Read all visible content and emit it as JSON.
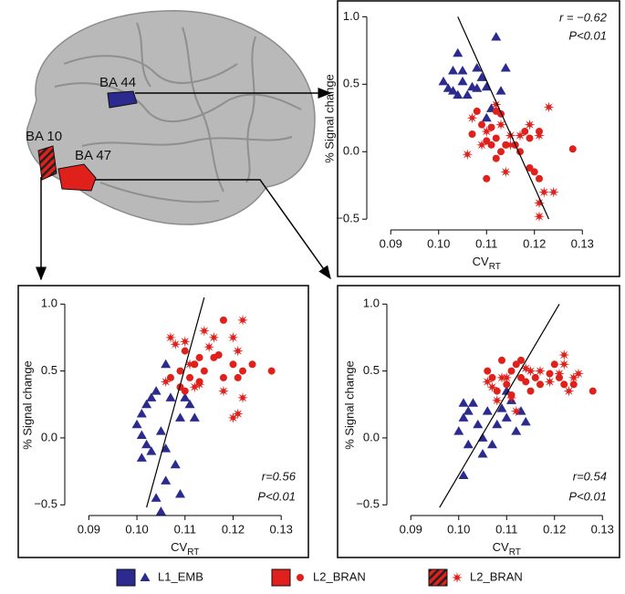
{
  "brain": {
    "labels": [
      "BA 44",
      "BA 10",
      "BA 47"
    ]
  },
  "chart_data": [
    {
      "type": "scatter",
      "xlabel": "CV",
      "xlabel_sub": "RT",
      "ylabel": "% Signal change",
      "annotations": [
        "r = −0.62",
        "P<0.01"
      ],
      "annotation_corner": "top-right",
      "xlim": [
        0.085,
        0.133
      ],
      "ylim": [
        -0.58,
        1.07
      ],
      "xticks": [
        0.09,
        {
          "value": 0.1,
          "label": "0.10"
        },
        0.11,
        0.12,
        0.13
      ],
      "yticks": [
        {
          "value": -0.5,
          "label": "−0.5"
        },
        {
          "value": 0,
          "label": "0.0"
        },
        0.5,
        {
          "value": 1,
          "label": "1.0"
        }
      ],
      "fit": {
        "x": [
          0.104,
          0.123
        ],
        "y": [
          1.0,
          -0.5
        ]
      },
      "series": [
        {
          "name": "L1_EMB",
          "color": "#2b2a8f",
          "marker": "triangle",
          "x": [
            0.101,
            0.102,
            0.104,
            0.103,
            0.105,
            0.105,
            0.104,
            0.106,
            0.107,
            0.108,
            0.109,
            0.11,
            0.108,
            0.111,
            0.112,
            0.11,
            0.113,
            0.114,
            0.103
          ],
          "y": [
            0.52,
            0.47,
            0.73,
            0.6,
            0.6,
            0.52,
            0.42,
            0.42,
            0.48,
            0.62,
            0.55,
            0.48,
            0.47,
            0.32,
            0.85,
            0.25,
            0.45,
            0.62,
            0.45
          ]
        },
        {
          "name": "L2_BRAN",
          "color": "#e0201b",
          "marker": "circle",
          "x": [
            0.108,
            0.109,
            0.111,
            0.112,
            0.113,
            0.11,
            0.111,
            0.112,
            0.114,
            0.113,
            0.116,
            0.118,
            0.117,
            0.119,
            0.121,
            0.119,
            0.12,
            0.121,
            0.11,
            0.128,
            0.107,
            0.112
          ],
          "y": [
            0.3,
            0.2,
            0.18,
            0.3,
            0.28,
            0.08,
            0.05,
            0.1,
            0.05,
            0.0,
            0.05,
            0.15,
            0.0,
            0.1,
            0.15,
            -0.12,
            -0.15,
            -0.2,
            -0.2,
            0.02,
            0.13,
            -0.05
          ]
        },
        {
          "name": "L2_BRAN",
          "color": "#e0201b",
          "marker": "star",
          "x": [
            0.107,
            0.109,
            0.11,
            0.113,
            0.115,
            0.117,
            0.119,
            0.121,
            0.123,
            0.122,
            0.121,
            0.121,
            0.124,
            0.114,
            0.106,
            0.112,
            0.115
          ],
          "y": [
            0.25,
            0.05,
            0.15,
            0.2,
            0.05,
            0.12,
            0.2,
            0.12,
            0.33,
            -0.3,
            -0.38,
            -0.48,
            -0.3,
            -0.15,
            -0.02,
            0.35,
            0.12
          ]
        }
      ]
    },
    {
      "type": "scatter",
      "xlabel": "CV",
      "xlabel_sub": "RT",
      "ylabel": "% Signal change",
      "annotations": [
        "r=0.56",
        "P<0.01"
      ],
      "annotation_corner": "bottom-right",
      "xlim": [
        0.085,
        0.133
      ],
      "ylim": [
        -0.58,
        1.07
      ],
      "xticks": [
        0.09,
        {
          "value": 0.1,
          "label": "0.10"
        },
        0.11,
        0.12,
        0.13
      ],
      "yticks": [
        {
          "value": -0.5,
          "label": "−0.5"
        },
        {
          "value": 0,
          "label": "0.0"
        },
        0.5,
        {
          "value": 1,
          "label": "1.0"
        }
      ],
      "fit": {
        "x": [
          0.102,
          0.114
        ],
        "y": [
          -0.52,
          1.05
        ]
      },
      "series": [
        {
          "name": "L1_EMB",
          "color": "#2b2a8f",
          "marker": "triangle",
          "x": [
            0.101,
            0.1,
            0.101,
            0.102,
            0.103,
            0.101,
            0.102,
            0.104,
            0.105,
            0.106,
            0.108,
            0.107,
            0.109,
            0.11,
            0.111,
            0.112,
            0.106,
            0.109,
            0.105,
            0.104,
            0.106,
            0.103
          ],
          "y": [
            0.18,
            0.1,
            0.02,
            -0.05,
            -0.1,
            -0.15,
            0.25,
            0.35,
            0.05,
            -0.08,
            -0.2,
            0.3,
            0.15,
            0.3,
            0.25,
            0.15,
            -0.32,
            -0.42,
            -0.55,
            -0.45,
            0.55,
            0.3
          ]
        },
        {
          "name": "L2_BRAN",
          "color": "#e0201b",
          "marker": "circle",
          "x": [
            0.107,
            0.109,
            0.11,
            0.111,
            0.112,
            0.113,
            0.114,
            0.116,
            0.117,
            0.118,
            0.12,
            0.121,
            0.122,
            0.124,
            0.128,
            0.118,
            0.11,
            0.109,
            0.113
          ],
          "y": [
            0.45,
            0.5,
            0.35,
            0.45,
            0.55,
            0.6,
            0.5,
            0.6,
            0.62,
            0.45,
            0.55,
            0.45,
            0.5,
            0.55,
            0.5,
            0.88,
            0.65,
            0.38,
            0.42
          ]
        },
        {
          "name": "L2_BRAN",
          "color": "#e0201b",
          "marker": "star",
          "x": [
            0.107,
            0.108,
            0.11,
            0.111,
            0.112,
            0.113,
            0.115,
            0.116,
            0.118,
            0.12,
            0.121,
            0.122,
            0.122,
            0.121,
            0.12,
            0.114,
            0.106
          ],
          "y": [
            0.75,
            0.7,
            0.72,
            0.55,
            0.38,
            0.4,
            0.68,
            0.75,
            0.35,
            0.75,
            0.65,
            0.88,
            0.3,
            0.18,
            0.15,
            0.8,
            0.42
          ]
        }
      ]
    },
    {
      "type": "scatter",
      "xlabel": "CV",
      "xlabel_sub": "RT",
      "ylabel": "% Signal change",
      "annotations": [
        "r=0.54",
        "P<0.01"
      ],
      "annotation_corner": "bottom-right",
      "xlim": [
        0.085,
        0.133
      ],
      "ylim": [
        -0.58,
        1.07
      ],
      "xticks": [
        0.09,
        {
          "value": 0.1,
          "label": "0.10"
        },
        0.11,
        0.12,
        0.13
      ],
      "yticks": [
        {
          "value": -0.5,
          "label": "−0.5"
        },
        {
          "value": 0,
          "label": "0.0"
        },
        0.5,
        {
          "value": 1,
          "label": "1.0"
        }
      ],
      "fit": {
        "x": [
          0.096,
          0.121
        ],
        "y": [
          -0.52,
          1.0
        ]
      },
      "series": [
        {
          "name": "L1_EMB",
          "color": "#2b2a8f",
          "marker": "triangle",
          "x": [
            0.1,
            0.101,
            0.102,
            0.101,
            0.103,
            0.102,
            0.101,
            0.104,
            0.105,
            0.106,
            0.107,
            0.108,
            0.109,
            0.11,
            0.111,
            0.112,
            0.113,
            0.114,
            0.105,
            0.11
          ],
          "y": [
            0.05,
            0.15,
            0.2,
            0.26,
            0.26,
            -0.05,
            -0.28,
            0.1,
            0.0,
            0.2,
            -0.05,
            0.1,
            0.22,
            0.15,
            0.28,
            0.05,
            0.2,
            0.12,
            -0.12,
            0.35
          ]
        },
        {
          "name": "L2_BRAN",
          "color": "#e0201b",
          "marker": "circle",
          "x": [
            0.107,
            0.108,
            0.109,
            0.11,
            0.111,
            0.112,
            0.113,
            0.114,
            0.115,
            0.116,
            0.117,
            0.119,
            0.12,
            0.121,
            0.122,
            0.124,
            0.128,
            0.113,
            0.106,
            0.111
          ],
          "y": [
            0.45,
            0.35,
            0.58,
            0.4,
            0.5,
            0.55,
            0.45,
            0.42,
            0.35,
            0.45,
            0.4,
            0.48,
            0.55,
            0.45,
            0.4,
            0.4,
            0.35,
            0.58,
            0.5,
            0.32
          ]
        },
        {
          "name": "L2_BRAN",
          "color": "#e0201b",
          "marker": "star",
          "x": [
            0.106,
            0.107,
            0.108,
            0.11,
            0.111,
            0.112,
            0.114,
            0.115,
            0.117,
            0.119,
            0.121,
            0.122,
            0.122,
            0.123,
            0.124,
            0.125,
            0.109
          ],
          "y": [
            0.42,
            0.38,
            0.28,
            0.45,
            0.3,
            0.2,
            0.52,
            0.5,
            0.5,
            0.42,
            0.48,
            0.55,
            0.62,
            0.35,
            0.45,
            0.48,
            0.45
          ]
        }
      ]
    }
  ]
}
